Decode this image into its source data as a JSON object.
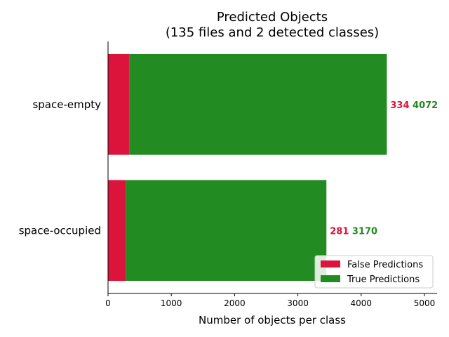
{
  "chart_data": {
    "type": "bar",
    "orientation": "horizontal",
    "stacked": true,
    "title": "Predicted Objects",
    "subtitle": "(135 files and 2 detected classes)",
    "xlabel": "Number of objects per class",
    "ylabel": "",
    "xlim": [
      0,
      5200
    ],
    "xticks": [
      0,
      1000,
      2000,
      3000,
      4000,
      5000
    ],
    "categories": [
      "space-empty",
      "space-occupied"
    ],
    "series": [
      {
        "name": "False Predictions",
        "color": "#dc143c",
        "values": [
          334,
          281
        ]
      },
      {
        "name": "True Predictions",
        "color": "#228b22",
        "values": [
          4072,
          3170
        ]
      }
    ],
    "data_labels": [
      {
        "false_label": "334",
        "true_label": "4072"
      },
      {
        "false_label": "281",
        "true_label": "3170"
      }
    ],
    "legend": {
      "position": "lower-right",
      "entries": [
        "False Predictions",
        "True Predictions"
      ]
    },
    "grid": false
  }
}
